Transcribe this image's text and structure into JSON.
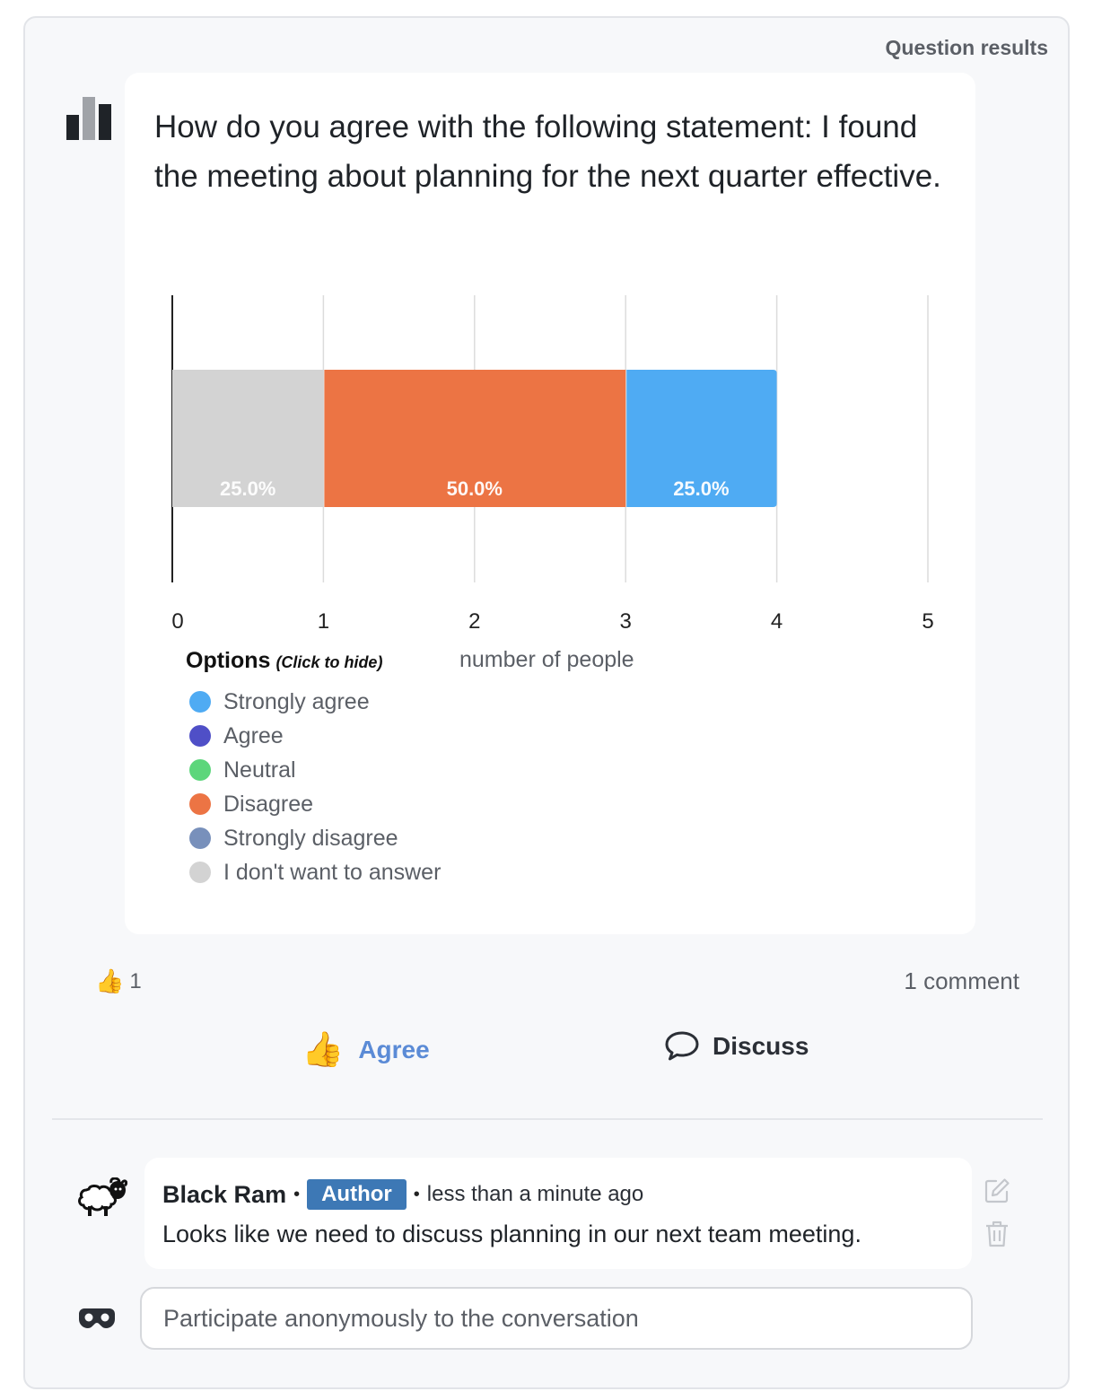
{
  "header": {
    "results_label": "Question results"
  },
  "question": {
    "text": "How do you agree with the following statement: I found the meeting about planning for the next quarter effective."
  },
  "chart_data": {
    "type": "bar",
    "orientation": "horizontal-stacked",
    "x_ticks": [
      "0",
      "1",
      "2",
      "3",
      "4",
      "5"
    ],
    "xlabel": "number of people",
    "xlim": [
      0,
      5
    ],
    "grid": true,
    "segments": [
      {
        "option": "I don't want to answer",
        "value": 1,
        "label": "25.0%",
        "color": "#d3d3d3"
      },
      {
        "option": "Disagree",
        "value": 2,
        "label": "50.0%",
        "color": "#ec7444"
      },
      {
        "option": "Strongly agree",
        "value": 1,
        "label": "25.0%",
        "color": "#4fabf3"
      }
    ],
    "legend": {
      "title": "Options",
      "hint": "(Click to hide)",
      "items": [
        {
          "label": "Strongly agree",
          "color": "#4fabf3"
        },
        {
          "label": "Agree",
          "color": "#4f4fc7"
        },
        {
          "label": "Neutral",
          "color": "#5cd67b"
        },
        {
          "label": "Disagree",
          "color": "#ec7444"
        },
        {
          "label": "Strongly disagree",
          "color": "#7890bb"
        },
        {
          "label": "I don't want to answer",
          "color": "#d3d3d3"
        }
      ]
    }
  },
  "reactions": {
    "thumb_count": "1",
    "comment_count": "1 comment"
  },
  "actions": {
    "agree_label": "Agree",
    "discuss_label": "Discuss"
  },
  "comment": {
    "author": "Black Ram",
    "badge": "Author",
    "time": "less than a minute ago",
    "text": "Looks like we need to discuss planning in our next team meeting."
  },
  "input": {
    "placeholder": "Participate anonymously to the conversation"
  }
}
